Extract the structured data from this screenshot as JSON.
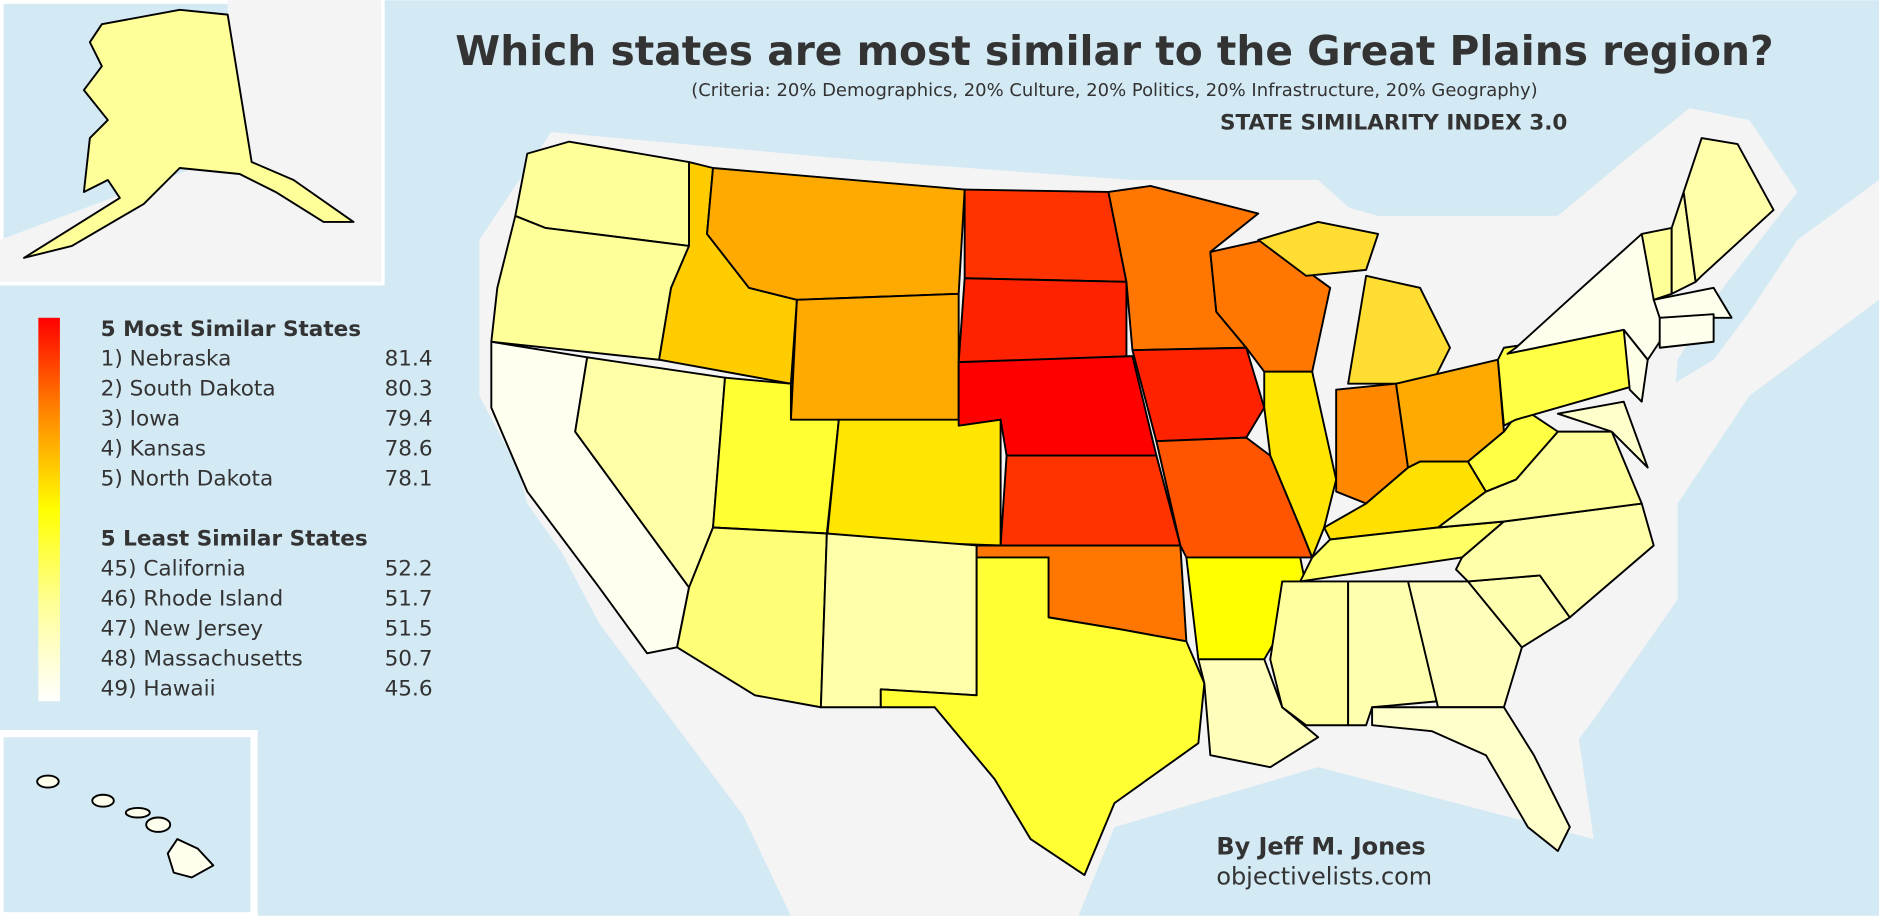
{
  "title": "Which states are most similar to the Great Plains region?",
  "subtitle": "(Criteria: 20% Demographics, 20% Culture, 20% Politics, 20% Infrastructure, 20% Geography)",
  "index_label": "STATE SIMILARITY INDEX 3.0",
  "legend": {
    "most": {
      "heading": "5 Most Similar States",
      "items": [
        {
          "label": "1) Nebraska",
          "value": 81.4
        },
        {
          "label": "2) South Dakota",
          "value": 80.3
        },
        {
          "label": "3) Iowa",
          "value": 79.4
        },
        {
          "label": "4) Kansas",
          "value": 78.6
        },
        {
          "label": "5) North Dakota",
          "value": 78.1
        }
      ]
    },
    "least": {
      "heading": "5 Least Similar States",
      "items": [
        {
          "label": "45) California",
          "value": 52.2
        },
        {
          "label": "46) Rhode Island",
          "value": 51.7
        },
        {
          "label": "47) New Jersey",
          "value": 51.5
        },
        {
          "label": "48) Massachusetts",
          "value": 50.7
        },
        {
          "label": "49) Hawaii",
          "value": 45.6
        }
      ]
    }
  },
  "credit": {
    "author": "By Jeff M. Jones",
    "site": "objectivelists.com"
  }
}
